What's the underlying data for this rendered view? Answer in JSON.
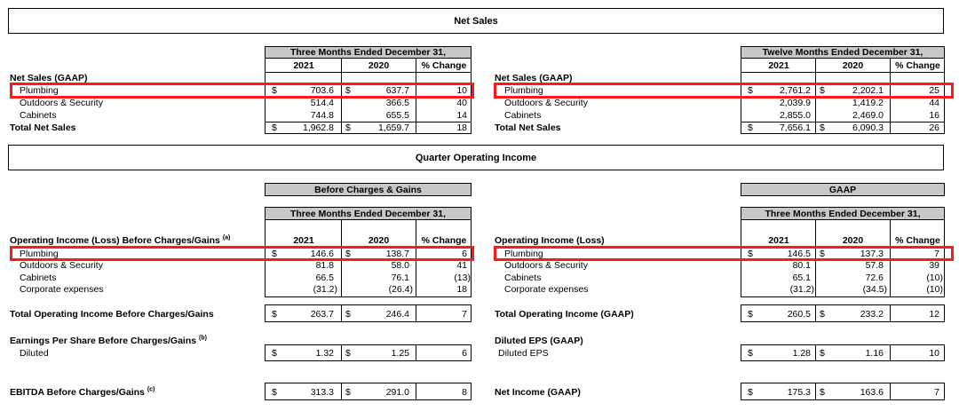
{
  "net_sales_section": {
    "title": "Net Sales",
    "left": {
      "period_header": "Three Months Ended December 31,",
      "col_year1": "2021",
      "col_year2": "2020",
      "col_change": "% Change",
      "label": "Net Sales (GAAP)",
      "rows": [
        {
          "name": "Plumbing",
          "cur1": "$",
          "v1": "703.6",
          "cur2": "$",
          "v2": "637.7",
          "chg": "10"
        },
        {
          "name": "Outdoors & Security",
          "cur1": "",
          "v1": "514.4",
          "cur2": "",
          "v2": "366.5",
          "chg": "40"
        },
        {
          "name": "Cabinets",
          "cur1": "",
          "v1": "744.8",
          "cur2": "",
          "v2": "655.5",
          "chg": "14"
        }
      ],
      "total": {
        "name": "Total Net Sales",
        "cur1": "$",
        "v1": "1,962.8",
        "cur2": "$",
        "v2": "1,659.7",
        "chg": "18"
      }
    },
    "right": {
      "period_header": "Twelve Months Ended December 31,",
      "col_year1": "2021",
      "col_year2": "2020",
      "col_change": "% Change",
      "label": "Net Sales (GAAP)",
      "rows": [
        {
          "name": "Plumbing",
          "cur1": "$",
          "v1": "2,761.2",
          "cur2": "$",
          "v2": "2,202.1",
          "chg": "25"
        },
        {
          "name": "Outdoors & Security",
          "cur1": "",
          "v1": "2,039.9",
          "cur2": "",
          "v2": "1,419.2",
          "chg": "44"
        },
        {
          "name": "Cabinets",
          "cur1": "",
          "v1": "2,855.0",
          "cur2": "",
          "v2": "2,469.0",
          "chg": "16"
        }
      ],
      "total": {
        "name": "Total Net Sales",
        "cur1": "$",
        "v1": "7,656.1",
        "cur2": "$",
        "v2": "6,090.3",
        "chg": "26"
      }
    }
  },
  "operating_section": {
    "title": "Quarter Operating Income",
    "left": {
      "group_header": "Before Charges & Gains",
      "period_header": "Three Months Ended December 31,",
      "col_year1": "2021",
      "col_year2": "2020",
      "col_change": "% Change",
      "label": "Operating Income (Loss) Before Charges/Gains",
      "label_note": "(a)",
      "rows": [
        {
          "name": "Plumbing",
          "cur1": "$",
          "v1": "146.6",
          "cur2": "$",
          "v2": "138.7",
          "chg": "6"
        },
        {
          "name": "Outdoors & Security",
          "cur1": "",
          "v1": "81.8",
          "cur2": "",
          "v2": "58.0",
          "chg": "41"
        },
        {
          "name": "Cabinets",
          "cur1": "",
          "v1": "66.5",
          "cur2": "",
          "v2": "76.1",
          "chg": "(13)"
        },
        {
          "name": "Corporate expenses",
          "cur1": "",
          "v1": "(31.2)",
          "cur2": "",
          "v2": "(26.4)",
          "chg": "18"
        }
      ],
      "total": {
        "name": "Total Operating Income Before Charges/Gains",
        "cur1": "$",
        "v1": "263.7",
        "cur2": "$",
        "v2": "246.4",
        "chg": "7"
      },
      "eps_label": "Earnings Per Share Before Charges/Gains",
      "eps_note": "(b)",
      "eps_row": {
        "name": "Diluted",
        "cur1": "$",
        "v1": "1.32",
        "cur2": "$",
        "v2": "1.25",
        "chg": "6"
      },
      "ebitda": {
        "name": "EBITDA Before Charges/Gains",
        "note": "(c)",
        "cur1": "$",
        "v1": "313.3",
        "cur2": "$",
        "v2": "291.0",
        "chg": "8"
      }
    },
    "right": {
      "group_header": "GAAP",
      "period_header": "Three Months Ended December 31,",
      "col_year1": "2021",
      "col_year2": "2020",
      "col_change": "% Change",
      "label": "Operating Income (Loss)",
      "rows": [
        {
          "name": "Plumbing",
          "cur1": "$",
          "v1": "146.5",
          "cur2": "$",
          "v2": "137.3",
          "chg": "7"
        },
        {
          "name": "Outdoors & Security",
          "cur1": "",
          "v1": "80.1",
          "cur2": "",
          "v2": "57.8",
          "chg": "39"
        },
        {
          "name": "Cabinets",
          "cur1": "",
          "v1": "65.1",
          "cur2": "",
          "v2": "72.6",
          "chg": "(10)"
        },
        {
          "name": "Corporate expenses",
          "cur1": "",
          "v1": "(31.2)",
          "cur2": "",
          "v2": "(34.5)",
          "chg": "(10)"
        }
      ],
      "total": {
        "name": "Total Operating Income (GAAP)",
        "cur1": "$",
        "v1": "260.5",
        "cur2": "$",
        "v2": "233.2",
        "chg": "12"
      },
      "eps_label": "Diluted EPS (GAAP)",
      "eps_row": {
        "name": "Diluted EPS",
        "cur1": "$",
        "v1": "1.28",
        "cur2": "$",
        "v2": "1.16",
        "chg": "10"
      },
      "ebitda": {
        "name": "Net Income (GAAP)",
        "cur1": "$",
        "v1": "175.3",
        "cur2": "$",
        "v2": "163.6",
        "chg": "7"
      }
    }
  },
  "highlight_color": "#ff1a1a"
}
